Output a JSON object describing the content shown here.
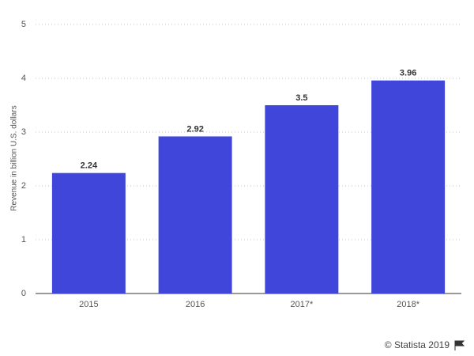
{
  "chart_data": {
    "type": "bar",
    "y_axis_label": "Revenue in billion U.S. dollars",
    "categories": [
      "2015",
      "2016",
      "2017*",
      "2018*"
    ],
    "values": [
      2.24,
      2.92,
      3.5,
      3.96
    ],
    "color": "#4146db",
    "ylim": [
      0,
      5
    ],
    "yticks": [
      0,
      1,
      2,
      3,
      4,
      5
    ],
    "grid": true,
    "source": "© Statista 2019"
  }
}
